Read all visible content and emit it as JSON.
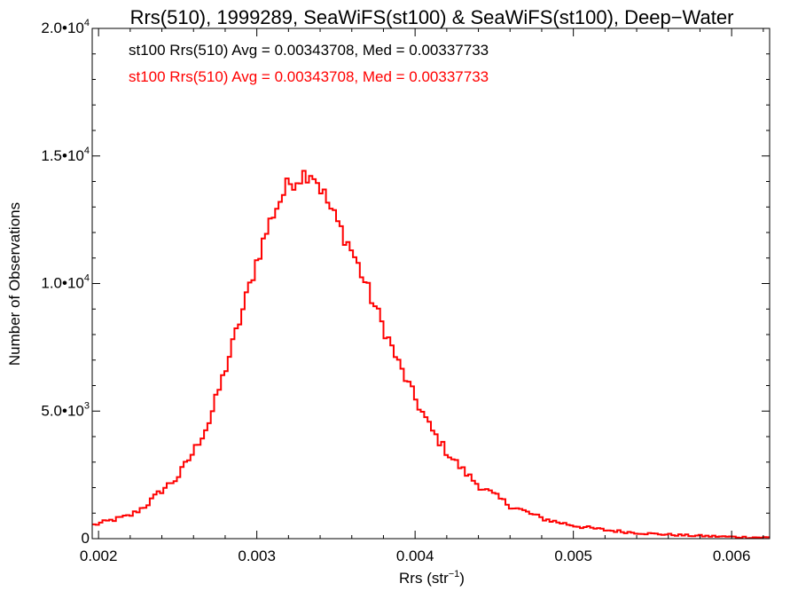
{
  "chart_data": {
    "type": "histogram",
    "title": "Rrs(510), 1999289, SeaWiFS(st100) & SeaWiFS(st100), Deep−Water",
    "xlabel": "Rrs (str⁻¹)",
    "ylabel": "Number of Observations",
    "xlim": [
      0.00196,
      0.00624
    ],
    "ylim": [
      0,
      20000
    ],
    "x_ticks": [
      {
        "value": 0.002,
        "label": "0.002"
      },
      {
        "value": 0.003,
        "label": "0.003"
      },
      {
        "value": 0.004,
        "label": "0.004"
      },
      {
        "value": 0.005,
        "label": "0.005"
      },
      {
        "value": 0.006,
        "label": "0.006"
      }
    ],
    "y_ticks": [
      {
        "value": 0,
        "label": "0"
      },
      {
        "value": 5000,
        "label": "5.0•103"
      },
      {
        "value": 10000,
        "label": "1.0•104"
      },
      {
        "value": 15000,
        "label": "1.5•104"
      },
      {
        "value": 20000,
        "label": "2.0•104"
      }
    ],
    "legend_position": "top-left",
    "grid": false,
    "series": [
      {
        "name": "st100 Rrs(510) Avg = 0.00343708, Med = 0.00337733",
        "color": "#000000",
        "width": 1.2,
        "points": [
          [
            0.00196,
            520
          ],
          [
            0.0021,
            750
          ],
          [
            0.0022,
            900
          ],
          [
            0.0023,
            1300
          ],
          [
            0.0024,
            1900
          ],
          [
            0.0025,
            2400
          ],
          [
            0.0026,
            3400
          ],
          [
            0.0027,
            4600
          ],
          [
            0.0028,
            6600
          ],
          [
            0.0029,
            8700
          ],
          [
            0.003,
            10900
          ],
          [
            0.0031,
            12700
          ],
          [
            0.0032,
            13900
          ],
          [
            0.0033,
            14300
          ],
          [
            0.00335,
            14400
          ],
          [
            0.0034,
            13800
          ],
          [
            0.0035,
            12500
          ],
          [
            0.0036,
            11300
          ],
          [
            0.0037,
            9800
          ],
          [
            0.0038,
            8300
          ],
          [
            0.0039,
            6800
          ],
          [
            0.004,
            5500
          ],
          [
            0.0041,
            4300
          ],
          [
            0.0042,
            3400
          ],
          [
            0.0043,
            2700
          ],
          [
            0.0044,
            2100
          ],
          [
            0.0045,
            1700
          ],
          [
            0.0046,
            1300
          ],
          [
            0.0047,
            1050
          ],
          [
            0.0048,
            800
          ],
          [
            0.0049,
            650
          ],
          [
            0.005,
            520
          ],
          [
            0.0051,
            420
          ],
          [
            0.0052,
            340
          ],
          [
            0.0053,
            280
          ],
          [
            0.0054,
            230
          ],
          [
            0.0055,
            190
          ],
          [
            0.0056,
            160
          ],
          [
            0.0057,
            130
          ],
          [
            0.0058,
            110
          ],
          [
            0.0059,
            90
          ],
          [
            0.006,
            70
          ],
          [
            0.0061,
            55
          ],
          [
            0.00624,
            45
          ]
        ]
      },
      {
        "name": "st100 Rrs(510) Avg = 0.00343708, Med = 0.00337733",
        "color": "#ff0000",
        "width": 2,
        "points": [
          [
            0.00196,
            520
          ],
          [
            0.0021,
            750
          ],
          [
            0.0022,
            900
          ],
          [
            0.0023,
            1300
          ],
          [
            0.0024,
            1900
          ],
          [
            0.0025,
            2400
          ],
          [
            0.0026,
            3400
          ],
          [
            0.0027,
            4600
          ],
          [
            0.0028,
            6600
          ],
          [
            0.0029,
            8700
          ],
          [
            0.003,
            10900
          ],
          [
            0.0031,
            12700
          ],
          [
            0.0032,
            13900
          ],
          [
            0.0033,
            14300
          ],
          [
            0.00335,
            14400
          ],
          [
            0.0034,
            13800
          ],
          [
            0.0035,
            12500
          ],
          [
            0.0036,
            11300
          ],
          [
            0.0037,
            9800
          ],
          [
            0.0038,
            8300
          ],
          [
            0.0039,
            6800
          ],
          [
            0.004,
            5500
          ],
          [
            0.0041,
            4300
          ],
          [
            0.0042,
            3400
          ],
          [
            0.0043,
            2700
          ],
          [
            0.0044,
            2100
          ],
          [
            0.0045,
            1700
          ],
          [
            0.0046,
            1300
          ],
          [
            0.0047,
            1050
          ],
          [
            0.0048,
            800
          ],
          [
            0.0049,
            650
          ],
          [
            0.005,
            520
          ],
          [
            0.0051,
            420
          ],
          [
            0.0052,
            340
          ],
          [
            0.0053,
            280
          ],
          [
            0.0054,
            230
          ],
          [
            0.0055,
            190
          ],
          [
            0.0056,
            160
          ],
          [
            0.0057,
            130
          ],
          [
            0.0058,
            110
          ],
          [
            0.0059,
            90
          ],
          [
            0.006,
            70
          ],
          [
            0.0061,
            55
          ],
          [
            0.00624,
            45
          ]
        ]
      }
    ]
  }
}
